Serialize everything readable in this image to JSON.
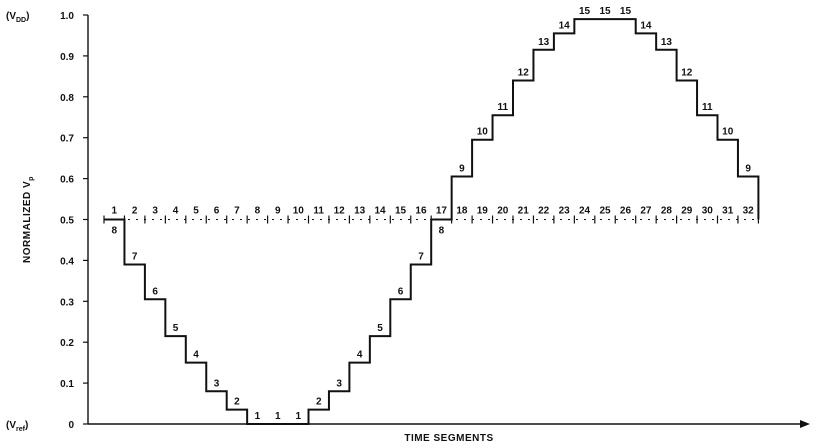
{
  "chart_data": {
    "type": "line",
    "xlabel": "TIME SEGMENTS",
    "ylabel": "NORMALIZED V",
    "ylabel_subscript": "p",
    "ylim": [
      0,
      1.0
    ],
    "xlim": [
      0,
      33
    ],
    "yticks": [
      "0",
      "0.1",
      "0.2",
      "0.3",
      "0.4",
      "0.5",
      "0.6",
      "0.7",
      "0.8",
      "0.9",
      "1.0"
    ],
    "ytick_values": [
      0,
      0.1,
      0.2,
      0.3,
      0.4,
      0.5,
      0.6,
      0.7,
      0.8,
      0.9,
      1.0
    ],
    "top_annotation": "(V",
    "top_annotation_sub": "DD",
    "bottom_annotation": "(V",
    "bottom_annotation_sub": "ref",
    "segments": [
      "1",
      "2",
      "3",
      "4",
      "5",
      "6",
      "7",
      "8",
      "9",
      "10",
      "11",
      "12",
      "13",
      "14",
      "15",
      "16",
      "17",
      "18",
      "19",
      "20",
      "21",
      "22",
      "23",
      "24",
      "25",
      "26",
      "27",
      "28",
      "29",
      "30",
      "31",
      "32"
    ],
    "series": [
      {
        "values": [
          0.5,
          0.39,
          0.305,
          0.215,
          0.15,
          0.08,
          0.035,
          0.0,
          0.0,
          0.0,
          0.035,
          0.08,
          0.15,
          0.215,
          0.305,
          0.39,
          0.5,
          0.605,
          0.695,
          0.755,
          0.84,
          0.915,
          0.955,
          0.99,
          0.99,
          0.99,
          0.955,
          0.915,
          0.84,
          0.755,
          0.695,
          0.605
        ],
        "step_labels": [
          "8",
          "7",
          "6",
          "5",
          "4",
          "3",
          "2",
          "1",
          "1",
          "1",
          "2",
          "3",
          "4",
          "5",
          "6",
          "7",
          "8",
          "9",
          "10",
          "11",
          "12",
          "13",
          "14",
          "15",
          "15",
          "15",
          "14",
          "13",
          "12",
          "11",
          "10",
          "9"
        ]
      }
    ],
    "midline_value": 0.5
  }
}
